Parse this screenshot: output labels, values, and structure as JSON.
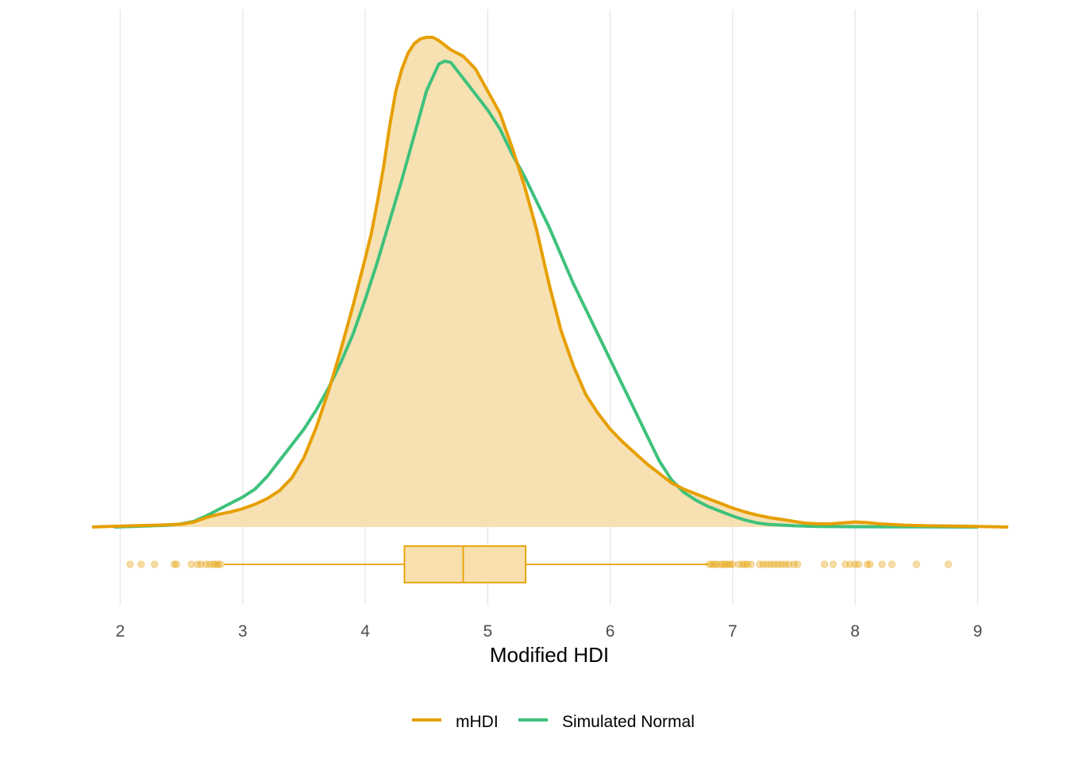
{
  "chart_data": {
    "type": "density",
    "xlabel": "Modified HDI",
    "xlim": [
      1.77,
      9.25
    ],
    "x_ticks": [
      2,
      3,
      4,
      5,
      6,
      7,
      8,
      9
    ],
    "grid": "vertical",
    "legend_position": "bottom",
    "series": [
      {
        "name": "mHDI",
        "color": "#E69F00",
        "fill": "#F7DFAE",
        "points": [
          [
            1.77,
            0.0
          ],
          [
            1.9,
            0.002
          ],
          [
            2.1,
            0.004
          ],
          [
            2.3,
            0.006
          ],
          [
            2.5,
            0.009
          ],
          [
            2.6,
            0.016
          ],
          [
            2.7,
            0.03
          ],
          [
            2.8,
            0.04
          ],
          [
            2.9,
            0.048
          ],
          [
            3.0,
            0.058
          ],
          [
            3.1,
            0.072
          ],
          [
            3.2,
            0.09
          ],
          [
            3.3,
            0.115
          ],
          [
            3.4,
            0.155
          ],
          [
            3.5,
            0.22
          ],
          [
            3.6,
            0.315
          ],
          [
            3.7,
            0.43
          ],
          [
            3.8,
            0.56
          ],
          [
            3.9,
            0.7
          ],
          [
            4.0,
            0.85
          ],
          [
            4.05,
            0.93
          ],
          [
            4.1,
            1.03
          ],
          [
            4.15,
            1.14
          ],
          [
            4.2,
            1.27
          ],
          [
            4.25,
            1.38
          ],
          [
            4.3,
            1.45
          ],
          [
            4.35,
            1.5
          ],
          [
            4.4,
            1.53
          ],
          [
            4.45,
            1.545
          ],
          [
            4.5,
            1.55
          ],
          [
            4.55,
            1.55
          ],
          [
            4.6,
            1.54
          ],
          [
            4.7,
            1.51
          ],
          [
            4.8,
            1.49
          ],
          [
            4.9,
            1.45
          ],
          [
            5.0,
            1.38
          ],
          [
            5.1,
            1.31
          ],
          [
            5.2,
            1.2
          ],
          [
            5.3,
            1.08
          ],
          [
            5.4,
            0.94
          ],
          [
            5.5,
            0.77
          ],
          [
            5.6,
            0.62
          ],
          [
            5.7,
            0.51
          ],
          [
            5.8,
            0.42
          ],
          [
            5.9,
            0.36
          ],
          [
            6.0,
            0.31
          ],
          [
            6.1,
            0.27
          ],
          [
            6.2,
            0.235
          ],
          [
            6.3,
            0.2
          ],
          [
            6.4,
            0.17
          ],
          [
            6.5,
            0.14
          ],
          [
            6.6,
            0.12
          ],
          [
            6.7,
            0.105
          ],
          [
            6.8,
            0.09
          ],
          [
            6.9,
            0.075
          ],
          [
            7.0,
            0.06
          ],
          [
            7.1,
            0.048
          ],
          [
            7.2,
            0.038
          ],
          [
            7.3,
            0.03
          ],
          [
            7.4,
            0.024
          ],
          [
            7.5,
            0.018
          ],
          [
            7.6,
            0.012
          ],
          [
            7.7,
            0.01
          ],
          [
            7.8,
            0.01
          ],
          [
            7.9,
            0.013
          ],
          [
            8.0,
            0.016
          ],
          [
            8.1,
            0.014
          ],
          [
            8.2,
            0.01
          ],
          [
            8.4,
            0.006
          ],
          [
            8.6,
            0.004
          ],
          [
            8.8,
            0.003
          ],
          [
            9.0,
            0.002
          ],
          [
            9.25,
            0.0
          ]
        ]
      },
      {
        "name": "Simulated Normal",
        "color": "#3EC17C",
        "points": [
          [
            1.95,
            0.0
          ],
          [
            2.2,
            0.003
          ],
          [
            2.4,
            0.006
          ],
          [
            2.5,
            0.01
          ],
          [
            2.6,
            0.018
          ],
          [
            2.7,
            0.035
          ],
          [
            2.8,
            0.055
          ],
          [
            2.9,
            0.075
          ],
          [
            3.0,
            0.095
          ],
          [
            3.1,
            0.12
          ],
          [
            3.2,
            0.16
          ],
          [
            3.3,
            0.21
          ],
          [
            3.4,
            0.26
          ],
          [
            3.5,
            0.31
          ],
          [
            3.6,
            0.37
          ],
          [
            3.7,
            0.44
          ],
          [
            3.8,
            0.52
          ],
          [
            3.9,
            0.61
          ],
          [
            4.0,
            0.72
          ],
          [
            4.1,
            0.84
          ],
          [
            4.2,
            0.97
          ],
          [
            4.3,
            1.1
          ],
          [
            4.4,
            1.24
          ],
          [
            4.5,
            1.38
          ],
          [
            4.6,
            1.465
          ],
          [
            4.65,
            1.475
          ],
          [
            4.7,
            1.47
          ],
          [
            4.8,
            1.42
          ],
          [
            4.9,
            1.37
          ],
          [
            5.0,
            1.32
          ],
          [
            5.1,
            1.26
          ],
          [
            5.2,
            1.18
          ],
          [
            5.3,
            1.11
          ],
          [
            5.4,
            1.03
          ],
          [
            5.5,
            0.95
          ],
          [
            5.6,
            0.86
          ],
          [
            5.7,
            0.77
          ],
          [
            5.8,
            0.69
          ],
          [
            5.9,
            0.61
          ],
          [
            6.0,
            0.53
          ],
          [
            6.1,
            0.45
          ],
          [
            6.2,
            0.37
          ],
          [
            6.3,
            0.29
          ],
          [
            6.4,
            0.21
          ],
          [
            6.5,
            0.15
          ],
          [
            6.6,
            0.11
          ],
          [
            6.7,
            0.085
          ],
          [
            6.8,
            0.065
          ],
          [
            6.9,
            0.05
          ],
          [
            7.0,
            0.035
          ],
          [
            7.1,
            0.022
          ],
          [
            7.2,
            0.013
          ],
          [
            7.3,
            0.008
          ],
          [
            7.5,
            0.004
          ],
          [
            7.7,
            0.002
          ],
          [
            8.0,
            0.001
          ],
          [
            8.5,
            0.0005
          ],
          [
            9.0,
            0.0
          ]
        ]
      }
    ],
    "boxplot": {
      "series": "mHDI",
      "lower_whisker": 2.85,
      "q1": 4.32,
      "median": 4.8,
      "q3": 5.31,
      "upper_whisker": 6.8,
      "outliers": [
        2.08,
        2.17,
        2.28,
        2.44,
        2.46,
        2.58,
        2.63,
        2.66,
        2.7,
        2.73,
        2.76,
        2.78,
        2.8,
        2.82,
        6.81,
        6.83,
        6.85,
        6.87,
        6.9,
        6.92,
        6.94,
        6.96,
        6.98,
        7.0,
        7.05,
        7.08,
        7.1,
        7.12,
        7.15,
        7.22,
        7.25,
        7.28,
        7.31,
        7.34,
        7.37,
        7.4,
        7.43,
        7.46,
        7.5,
        7.53,
        7.75,
        7.82,
        7.92,
        7.96,
        8.0,
        8.03,
        8.1,
        8.12,
        8.22,
        8.3,
        8.5,
        8.76
      ]
    }
  },
  "legend": {
    "items": [
      {
        "label": "mHDI",
        "color": "#E69F00"
      },
      {
        "label": "Simulated Normal",
        "color": "#3EC17C"
      }
    ]
  }
}
